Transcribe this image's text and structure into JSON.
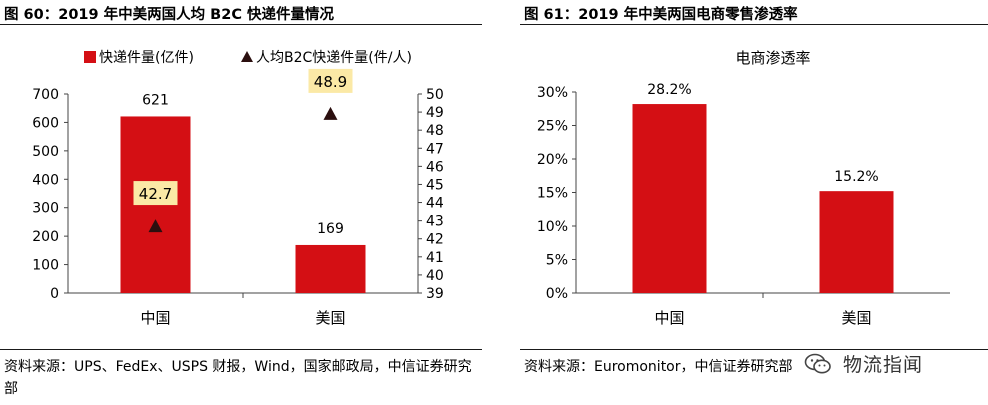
{
  "figures": [
    {
      "title": "图 60：2019 年中美两国人均 B2C 快递件量情况",
      "source": "资料来源：UPS、FedEx、USPS 财报，Wind，国家邮政局，中信证券研究部"
    },
    {
      "title": "图 61：2019 年中美两国电商零售渗透率",
      "source": "资料来源：Euromonitor，中信证券研究部"
    }
  ],
  "watermark": "物流指闻",
  "colors": {
    "bar": "#d40f14",
    "marker": "#2b0f0f",
    "label_bg": "#fbe9a6",
    "axis": "#444444",
    "rule": "#1a1a1a"
  },
  "chart_data": [
    {
      "type": "bar",
      "categories": [
        "中国",
        "美国"
      ],
      "series": [
        {
          "name": "快递件量(亿件)",
          "type": "bar",
          "axis": "left",
          "values": [
            621,
            169
          ],
          "labels": [
            "621",
            "169"
          ]
        },
        {
          "name": "人均B2C快递件量(件/人)",
          "type": "scatter",
          "marker": "triangle",
          "axis": "right",
          "values": [
            42.7,
            48.9
          ],
          "labels": [
            "42.7",
            "48.9"
          ]
        }
      ],
      "ylim_left": [
        0,
        700
      ],
      "yticks_left": [
        "0",
        "100",
        "200",
        "300",
        "400",
        "500",
        "600",
        "700"
      ],
      "ylim_right": [
        39,
        50
      ],
      "yticks_right": [
        "39",
        "40",
        "41",
        "42",
        "43",
        "44",
        "45",
        "46",
        "47",
        "48",
        "49",
        "50"
      ],
      "legend_position": "top",
      "grid": false
    },
    {
      "type": "bar",
      "title": "电商渗透率",
      "categories": [
        "中国",
        "美国"
      ],
      "values": [
        28.2,
        15.2
      ],
      "labels": [
        "28.2%",
        "15.2%"
      ],
      "ylim": [
        0,
        30
      ],
      "yticks": [
        "0%",
        "5%",
        "10%",
        "15%",
        "20%",
        "25%",
        "30%"
      ],
      "grid": false
    }
  ]
}
